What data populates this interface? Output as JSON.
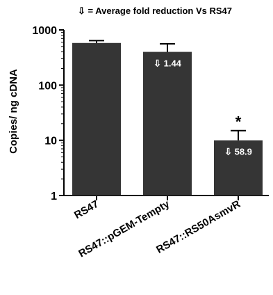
{
  "chart_data": {
    "type": "bar",
    "title": "⇩ = Average fold reduction Vs RS47",
    "xlabel": "",
    "ylabel": "Copies/ ng cDNA",
    "yscale": "log",
    "ylim": [
      1,
      1000
    ],
    "yticks": [
      "1",
      "10",
      "100",
      "1000"
    ],
    "categories": [
      "RS47",
      "RS47::pGEM-Tempty",
      "RS47::RS50AsmvR"
    ],
    "values": [
      580,
      400,
      10
    ],
    "error_upper": [
      640,
      560,
      15
    ],
    "bar_labels": [
      "",
      "⇩ 1.44",
      "⇩ 58.9"
    ],
    "significance": [
      "",
      "",
      "*"
    ],
    "bar_color": "#353535",
    "grid": false
  }
}
